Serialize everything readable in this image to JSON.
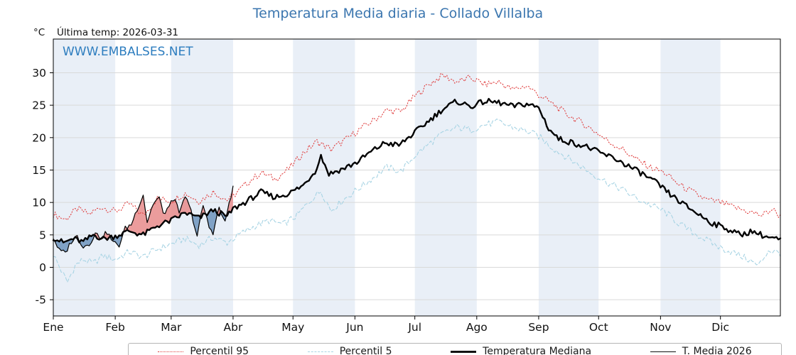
{
  "header": {
    "y_unit": "°C",
    "last_temp": "Última temp: 2026-03-31",
    "watermark": "WWW.EMBALSES.NET"
  },
  "legend": {
    "items": [
      {
        "label": "Percentil 95",
        "sample": "red-dotted"
      },
      {
        "label": "Percentil 5",
        "sample": "cyan-dashed"
      },
      {
        "label": "Temperatura Mediana",
        "sample": "black-thick"
      },
      {
        "label": "T. Media 2026",
        "sample": "black-thin"
      }
    ]
  },
  "chart_data": {
    "type": "line",
    "title": "Temperatura Media diaria - Collado Villalba",
    "xlabel": "",
    "ylabel": "°C",
    "ylim": [
      -7.5,
      35.2
    ],
    "yticks": [
      -5,
      0,
      5,
      10,
      15,
      20,
      25,
      30
    ],
    "days_total": 365,
    "months": [
      {
        "label": "Ene",
        "start": 0
      },
      {
        "label": "Feb",
        "start": 31
      },
      {
        "label": "Mar",
        "start": 59
      },
      {
        "label": "Abr",
        "start": 90
      },
      {
        "label": "May",
        "start": 120
      },
      {
        "label": "Jun",
        "start": 151
      },
      {
        "label": "Jul",
        "start": 181
      },
      {
        "label": "Ago",
        "start": 212
      },
      {
        "label": "Sep",
        "start": 243
      },
      {
        "label": "Oct",
        "start": 273
      },
      {
        "label": "Nov",
        "start": 304
      },
      {
        "label": "Dic",
        "start": 334
      }
    ],
    "band_color": "#e9eff7",
    "grid_color": "#d9d9d9",
    "series": [
      {
        "name": "Percentil 95",
        "style": "dotted",
        "color": "#e04040",
        "width": 1.1,
        "noise": 0.55,
        "anchors": [
          [
            0,
            8.2
          ],
          [
            6,
            7.4
          ],
          [
            12,
            9.0
          ],
          [
            18,
            8.2
          ],
          [
            24,
            9.3
          ],
          [
            31,
            8.6
          ],
          [
            38,
            9.8
          ],
          [
            45,
            8.0
          ],
          [
            52,
            10.6
          ],
          [
            59,
            10.2
          ],
          [
            66,
            11.4
          ],
          [
            73,
            10.2
          ],
          [
            80,
            11.6
          ],
          [
            87,
            10.4
          ],
          [
            90,
            11.0
          ],
          [
            97,
            13.0
          ],
          [
            104,
            14.6
          ],
          [
            111,
            13.6
          ],
          [
            118,
            15.2
          ],
          [
            125,
            17.6
          ],
          [
            132,
            19.4
          ],
          [
            139,
            18.2
          ],
          [
            146,
            19.6
          ],
          [
            153,
            21.2
          ],
          [
            160,
            22.6
          ],
          [
            167,
            24.2
          ],
          [
            174,
            24.0
          ],
          [
            181,
            26.4
          ],
          [
            188,
            28.2
          ],
          [
            195,
            29.6
          ],
          [
            202,
            28.6
          ],
          [
            209,
            29.2
          ],
          [
            216,
            28.2
          ],
          [
            223,
            28.6
          ],
          [
            230,
            27.4
          ],
          [
            237,
            28.0
          ],
          [
            243,
            26.6
          ],
          [
            250,
            25.2
          ],
          [
            257,
            23.6
          ],
          [
            264,
            22.4
          ],
          [
            271,
            21.0
          ],
          [
            278,
            19.4
          ],
          [
            285,
            18.2
          ],
          [
            292,
            16.6
          ],
          [
            299,
            15.4
          ],
          [
            306,
            14.6
          ],
          [
            313,
            12.8
          ],
          [
            320,
            11.6
          ],
          [
            327,
            10.4
          ],
          [
            334,
            10.0
          ],
          [
            341,
            9.2
          ],
          [
            348,
            8.6
          ],
          [
            355,
            8.0
          ],
          [
            360,
            9.0
          ],
          [
            364,
            7.8
          ]
        ]
      },
      {
        "name": "Percentil 5",
        "style": "dashed",
        "color": "#a8d4e4",
        "width": 1.1,
        "noise": 0.55,
        "anchors": [
          [
            0,
            2.0
          ],
          [
            4,
            -0.5
          ],
          [
            7,
            -2.3
          ],
          [
            11,
            0.3
          ],
          [
            15,
            1.2
          ],
          [
            20,
            0.6
          ],
          [
            25,
            1.8
          ],
          [
            31,
            1.2
          ],
          [
            38,
            2.4
          ],
          [
            45,
            1.6
          ],
          [
            52,
            2.8
          ],
          [
            59,
            3.6
          ],
          [
            66,
            4.4
          ],
          [
            73,
            3.4
          ],
          [
            80,
            4.6
          ],
          [
            87,
            3.8
          ],
          [
            94,
            5.2
          ],
          [
            101,
            6.4
          ],
          [
            108,
            7.2
          ],
          [
            115,
            6.6
          ],
          [
            122,
            8.0
          ],
          [
            129,
            10.4
          ],
          [
            134,
            11.8
          ],
          [
            139,
            8.8
          ],
          [
            146,
            10.6
          ],
          [
            153,
            12.2
          ],
          [
            160,
            13.8
          ],
          [
            167,
            15.4
          ],
          [
            174,
            14.8
          ],
          [
            181,
            17.2
          ],
          [
            188,
            19.0
          ],
          [
            195,
            20.6
          ],
          [
            202,
            21.6
          ],
          [
            209,
            21.2
          ],
          [
            216,
            22.0
          ],
          [
            223,
            22.4
          ],
          [
            230,
            21.6
          ],
          [
            237,
            21.0
          ],
          [
            243,
            20.2
          ],
          [
            250,
            18.4
          ],
          [
            257,
            17.0
          ],
          [
            264,
            15.6
          ],
          [
            271,
            14.2
          ],
          [
            278,
            13.0
          ],
          [
            285,
            12.0
          ],
          [
            292,
            10.6
          ],
          [
            299,
            9.6
          ],
          [
            306,
            8.6
          ],
          [
            313,
            6.8
          ],
          [
            320,
            5.4
          ],
          [
            327,
            4.2
          ],
          [
            334,
            3.0
          ],
          [
            341,
            2.2
          ],
          [
            348,
            1.2
          ],
          [
            353,
            0.2
          ],
          [
            358,
            2.6
          ],
          [
            364,
            2.2
          ]
        ]
      },
      {
        "name": "Temperatura Mediana",
        "style": "solid",
        "color": "#000000",
        "width": 2.4,
        "noise": 0.45,
        "anchors": [
          [
            0,
            4.6
          ],
          [
            5,
            3.8
          ],
          [
            10,
            4.4
          ],
          [
            15,
            3.9
          ],
          [
            20,
            5.0
          ],
          [
            25,
            4.4
          ],
          [
            31,
            4.8
          ],
          [
            38,
            5.6
          ],
          [
            45,
            5.0
          ],
          [
            52,
            6.4
          ],
          [
            59,
            7.2
          ],
          [
            66,
            8.4
          ],
          [
            73,
            7.6
          ],
          [
            80,
            8.8
          ],
          [
            87,
            7.8
          ],
          [
            90,
            9.0
          ],
          [
            97,
            10.2
          ],
          [
            104,
            11.6
          ],
          [
            111,
            10.8
          ],
          [
            118,
            11.4
          ],
          [
            125,
            12.6
          ],
          [
            131,
            14.8
          ],
          [
            134,
            17.2
          ],
          [
            138,
            14.4
          ],
          [
            145,
            15.2
          ],
          [
            152,
            16.2
          ],
          [
            159,
            17.8
          ],
          [
            166,
            19.2
          ],
          [
            173,
            18.8
          ],
          [
            181,
            20.8
          ],
          [
            188,
            22.6
          ],
          [
            195,
            24.4
          ],
          [
            202,
            25.6
          ],
          [
            209,
            24.8
          ],
          [
            216,
            25.6
          ],
          [
            223,
            25.4
          ],
          [
            230,
            24.8
          ],
          [
            237,
            25.2
          ],
          [
            243,
            24.6
          ],
          [
            248,
            21.4
          ],
          [
            253,
            19.8
          ],
          [
            260,
            19.2
          ],
          [
            267,
            18.6
          ],
          [
            274,
            17.6
          ],
          [
            281,
            16.8
          ],
          [
            288,
            15.6
          ],
          [
            295,
            14.4
          ],
          [
            302,
            13.0
          ],
          [
            309,
            11.2
          ],
          [
            316,
            9.6
          ],
          [
            323,
            8.2
          ],
          [
            330,
            6.8
          ],
          [
            337,
            6.0
          ],
          [
            344,
            5.0
          ],
          [
            350,
            5.6
          ],
          [
            356,
            4.8
          ],
          [
            364,
            4.2
          ]
        ]
      },
      {
        "name": "T. Media 2026",
        "style": "solid",
        "color": "#000000",
        "width": 1.2,
        "noise": 0.4,
        "range": [
          0,
          90
        ],
        "anchors": [
          [
            0,
            4.6
          ],
          [
            3,
            2.6
          ],
          [
            6,
            2.2
          ],
          [
            9,
            4.0
          ],
          [
            12,
            4.8
          ],
          [
            15,
            3.2
          ],
          [
            18,
            3.6
          ],
          [
            21,
            5.2
          ],
          [
            24,
            4.6
          ],
          [
            27,
            5.4
          ],
          [
            30,
            3.8
          ],
          [
            33,
            3.4
          ],
          [
            36,
            6.0
          ],
          [
            39,
            6.6
          ],
          [
            42,
            9.0
          ],
          [
            45,
            11.2
          ],
          [
            47,
            7.0
          ],
          [
            50,
            9.8
          ],
          [
            53,
            10.8
          ],
          [
            55,
            8.2
          ],
          [
            58,
            9.4
          ],
          [
            61,
            10.8
          ],
          [
            63,
            8.0
          ],
          [
            66,
            11.0
          ],
          [
            69,
            8.6
          ],
          [
            72,
            4.8
          ],
          [
            75,
            9.6
          ],
          [
            78,
            6.2
          ],
          [
            80,
            5.4
          ],
          [
            83,
            9.2
          ],
          [
            86,
            6.8
          ],
          [
            88,
            10.0
          ],
          [
            90,
            12.2
          ]
        ]
      }
    ],
    "fills": {
      "between": [
        "T. Media 2026",
        "Temperatura Mediana"
      ],
      "above_color": "#e88b8b",
      "below_color": "#6d94bd",
      "opacity": 0.85
    },
    "legend_position": "bottom"
  }
}
